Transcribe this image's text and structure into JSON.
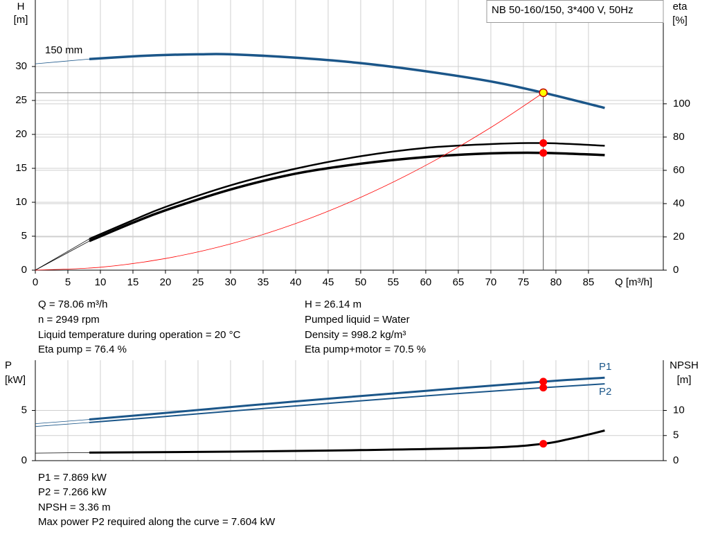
{
  "chart_data": [
    {
      "type": "line",
      "title": "NB 50-160/150, 3*400 V, 50Hz",
      "y_label": [
        "H",
        "[m]"
      ],
      "y2_label": [
        "eta",
        "[%]"
      ],
      "x_label": "Q [m³/h]",
      "xlim": [
        0,
        96.5
      ],
      "xticks": [
        0,
        5,
        10,
        15,
        20,
        25,
        30,
        35,
        40,
        45,
        50,
        55,
        60,
        65,
        70,
        75,
        80,
        85
      ],
      "ylim": [
        0,
        39.8
      ],
      "yticks": [
        0,
        5,
        10,
        15,
        20,
        25,
        30
      ],
      "y2lim": [
        0,
        162.4
      ],
      "y2ticks": [
        0,
        20,
        40,
        60,
        80,
        100
      ],
      "grid": true,
      "series": [
        {
          "name": "150 mm",
          "color": "#1b5689",
          "width": 3.5,
          "thin_start": true,
          "x": [
            0,
            8.3,
            15,
            20,
            25,
            30,
            40,
            50,
            60,
            70,
            78.06,
            87.5
          ],
          "values": [
            30.4,
            31.1,
            31.5,
            31.7,
            31.8,
            31.8,
            31.3,
            30.5,
            29.3,
            27.8,
            26.14,
            23.9
          ]
        },
        {
          "color": "#000000",
          "axis": "y2",
          "width": 2.5,
          "thin_start": true,
          "x": [
            0,
            8.3,
            15,
            20,
            30,
            40,
            50,
            60,
            70,
            78.06,
            87.5
          ],
          "values": [
            0,
            18.8,
            30,
            38,
            51,
            61,
            68.5,
            73.5,
            75.8,
            76.4,
            74.8
          ]
        },
        {
          "color": "#000000",
          "axis": "y2",
          "width": 3.5,
          "thin_start": true,
          "x": [
            0,
            8.3,
            15,
            20,
            30,
            40,
            50,
            60,
            70,
            78.06,
            87.5
          ],
          "values": [
            0,
            17.5,
            28.5,
            36,
            48.5,
            58,
            64,
            68,
            70.2,
            70.5,
            69.2
          ]
        },
        {
          "color": "#ff0000",
          "width": 0.8,
          "x": [
            0,
            10,
            20,
            30,
            40,
            50,
            60,
            70,
            78.06
          ],
          "values": [
            0,
            0.429,
            1.716,
            3.861,
            6.864,
            10.73,
            15.44,
            21.02,
            26.14
          ]
        }
      ],
      "points": [
        {
          "x": 78.06,
          "y": 26.14,
          "color": "#ffff00",
          "guides": true
        },
        {
          "x": 78.06,
          "y": 76.4,
          "axis": "y2",
          "color": "#ff0000"
        },
        {
          "x": 78.06,
          "y": 70.5,
          "axis": "y2",
          "color": "#ff0000"
        }
      ]
    },
    {
      "type": "line",
      "y_label": [
        "P",
        "[kW]"
      ],
      "y2_label": [
        "NPSH",
        "[m]"
      ],
      "xlim": [
        0,
        96.5
      ],
      "ylim": [
        0,
        10
      ],
      "yticks": [
        0,
        5
      ],
      "y2lim": [
        0,
        20
      ],
      "y2ticks": [
        0,
        5,
        10
      ],
      "grid": true,
      "series": [
        {
          "name": "P1",
          "color": "#1b5689",
          "width": 3,
          "thin_start": true,
          "x": [
            0,
            8.3,
            20,
            40,
            60,
            78.06,
            87.5
          ],
          "values": [
            3.68,
            4.1,
            4.75,
            5.9,
            6.95,
            7.869,
            8.26
          ]
        },
        {
          "name": "P2",
          "color": "#1b5689",
          "width": 2,
          "thin_start": true,
          "x": [
            0,
            8.3,
            20,
            40,
            60,
            78.06,
            87.5
          ],
          "values": [
            3.4,
            3.8,
            4.4,
            5.45,
            6.45,
            7.266,
            7.65
          ]
        },
        {
          "color": "#000000",
          "axis": "y2",
          "width": 3,
          "thin_start": true,
          "x": [
            0,
            8.3,
            30,
            50,
            70,
            78.06,
            82,
            85,
            87.5
          ],
          "values": [
            1.5,
            1.6,
            1.8,
            2.1,
            2.6,
            3.36,
            4.3,
            5.2,
            6.0
          ]
        }
      ],
      "points": [
        {
          "x": 78.06,
          "y": 7.869,
          "color": "#ff0000"
        },
        {
          "x": 78.06,
          "y": 7.266,
          "color": "#ff0000"
        },
        {
          "x": 78.06,
          "y": 3.36,
          "axis": "y2",
          "color": "#ff0000"
        }
      ]
    }
  ],
  "info_top": {
    "left": [
      "Q = 78.06 m³/h",
      "n = 2949 rpm",
      "Liquid temperature during operation = 20 °C",
      "Eta pump = 76.4 %"
    ],
    "right": [
      "H = 26.14 m",
      "Pumped liquid = Water",
      "Density = 998.2 kg/m³",
      "Eta pump+motor = 70.5 %"
    ]
  },
  "info_bottom": [
    "P1 = 7.869 kW",
    "P2 = 7.266 kW",
    "NPSH = 3.36 m",
    "Max power P2 required along the curve = 7.604 kW"
  ]
}
